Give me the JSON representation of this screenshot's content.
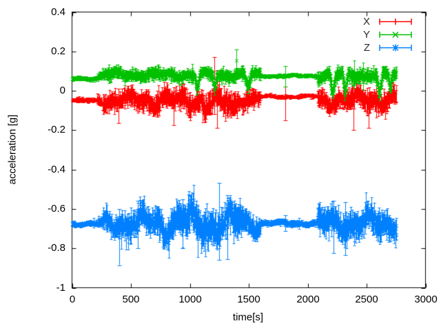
{
  "chart_data": {
    "type": "scatter",
    "subtype": "errorbars",
    "title": "",
    "xlabel": "time[s]",
    "ylabel": "acceleration [g]",
    "xlim": [
      0,
      3000
    ],
    "ylim": [
      -1,
      0.4
    ],
    "grid": false,
    "background": "#ffffff",
    "border_color": "#000000",
    "text_color": "#000000",
    "legend_position": "top-right-inside",
    "xticks": [
      "0",
      "500",
      "1000",
      "1500",
      "2000",
      "2500",
      "3000"
    ],
    "xtick_values": [
      0,
      500,
      1000,
      1500,
      2000,
      2500,
      3000
    ],
    "yticks": [
      "0.4",
      "0.2",
      "0",
      "-0.2",
      "-0.4",
      "-0.6",
      "-0.8",
      "-1"
    ],
    "ytick_values": [
      0.4,
      0.2,
      0,
      -0.2,
      -0.4,
      -0.6,
      -0.8,
      -1
    ],
    "sample_step_s": 2.8,
    "data_end_s": 2755,
    "series": [
      {
        "name": "X",
        "color": "#ff0000",
        "marker": "none",
        "seed": 11,
        "description": "x-axis acceleration, quiet ~-0.05 g at start, noisy -0.05±0.05 g from ~230-1600 s, quiet -0.03 g 1600-2080 s, noisy again 2080-2755 s",
        "segments": [
          [
            0,
            215,
            -0.048,
            0.003,
            0.01
          ],
          [
            215,
            255,
            -0.044,
            0.01,
            0.02
          ],
          [
            255,
            640,
            -0.048,
            0.02,
            0.042
          ],
          [
            640,
            1100,
            -0.045,
            0.024,
            0.05
          ],
          [
            1100,
            1400,
            -0.065,
            0.028,
            0.055
          ],
          [
            1400,
            1600,
            -0.042,
            0.018,
            0.04
          ],
          [
            1600,
            2082,
            -0.028,
            0.0035,
            0.008
          ],
          [
            2082,
            2755,
            -0.045,
            0.022,
            0.048
          ]
        ],
        "dips": [],
        "spikes": [
          [
            395,
            -0.165,
            0.01
          ],
          [
            860,
            -0.175,
            -0.02
          ],
          [
            1205,
            -0.12,
            0.17
          ],
          [
            1232,
            -0.19,
            0.1
          ],
          [
            1810,
            -0.15,
            0.02
          ],
          [
            2390,
            -0.2,
            -0.02
          ],
          [
            2520,
            -0.19,
            -0.01
          ]
        ]
      },
      {
        "name": "Y",
        "color": "#00c000",
        "marker": "x",
        "seed": 22,
        "description": "y-axis acceleration, ~+0.06 g at start, noisy 0.08±0.03 g 230-1600 s with spike to 0.21 g near 1390 s, quiet 0.077 g 1600-2080 s, noisy with deep dips to ~-0.02 g near 2210/2320/2610 s",
        "segments": [
          [
            0,
            215,
            0.063,
            0.003,
            0.01
          ],
          [
            215,
            255,
            0.072,
            0.01,
            0.02
          ],
          [
            255,
            1600,
            0.082,
            0.011,
            0.028
          ],
          [
            1600,
            2082,
            0.077,
            0.003,
            0.008
          ],
          [
            2082,
            2755,
            0.082,
            0.014,
            0.032
          ]
        ],
        "dips": [
          [
            1062,
            25,
            0.005
          ],
          [
            1210,
            20,
            0.015
          ],
          [
            1490,
            35,
            0.02
          ],
          [
            2212,
            30,
            -0.01
          ],
          [
            2317,
            25,
            -0.015
          ],
          [
            2608,
            30,
            -0.02
          ],
          [
            2700,
            18,
            0.01
          ]
        ],
        "spikes": [
          [
            1392,
            0.1,
            0.21
          ],
          [
            1810,
            0.02,
            0.125
          ]
        ]
      },
      {
        "name": "Z",
        "color": "#0080ff",
        "marker": "star",
        "seed": 33,
        "description": "z-axis acceleration ~-0.675 g throughout; noisy ±0.07 g 230-1600 s with down-spike to -0.89 g near 400 s and up-spike to -0.47 g near 1250 s, quiet 1600-2080 s, noisy 2080-2760 s",
        "segments": [
          [
            0,
            215,
            -0.675,
            0.004,
            0.012
          ],
          [
            215,
            260,
            -0.673,
            0.012,
            0.025
          ],
          [
            260,
            420,
            -0.673,
            0.028,
            0.05
          ],
          [
            420,
            700,
            -0.672,
            0.038,
            0.06
          ],
          [
            700,
            1000,
            -0.67,
            0.042,
            0.068
          ],
          [
            1000,
            1450,
            -0.672,
            0.048,
            0.075
          ],
          [
            1450,
            1600,
            -0.674,
            0.028,
            0.05
          ],
          [
            1600,
            2082,
            -0.672,
            0.006,
            0.014
          ],
          [
            2082,
            2760,
            -0.673,
            0.034,
            0.06
          ]
        ],
        "dips": [],
        "spikes": [
          [
            398,
            -0.885,
            -0.6
          ],
          [
            560,
            -0.8,
            -0.56
          ],
          [
            940,
            -0.8,
            -0.55
          ],
          [
            1248,
            -0.86,
            -0.468
          ],
          [
            1320,
            -0.855,
            -0.53
          ],
          [
            1810,
            -0.712,
            -0.632
          ],
          [
            2218,
            -0.825,
            -0.56
          ],
          [
            2317,
            -0.835,
            -0.565
          ]
        ]
      }
    ]
  }
}
